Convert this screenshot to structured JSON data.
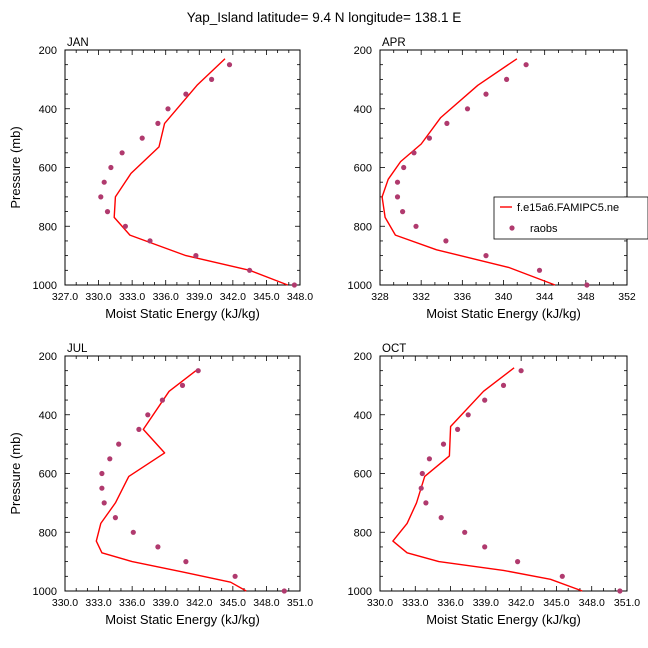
{
  "title": "Yap_Island  latitude= 9.4 N longitude= 138.1 E",
  "colors": {
    "model_line": "#ff0000",
    "raobs_marker": "#b03a6e",
    "axes": "#000000"
  },
  "legend": {
    "placement": "right of APR panel",
    "model_label": "f.e15a6.FAMIPC5.ne",
    "obs_label": "raobs"
  },
  "chart_data": [
    {
      "type": "line",
      "panel_label": "JAN",
      "xlabel": "Moist Static Energy (kJ/kg)",
      "ylabel": "Pressure (mb)",
      "xlim": [
        327,
        348
      ],
      "ylim": [
        1000,
        200
      ],
      "y_inverted": true,
      "xticks": [
        "327.0",
        "330.0",
        "333.0",
        "336.0",
        "339.0",
        "342.0",
        "345.0",
        "348.0"
      ],
      "xtick_values": [
        327,
        330,
        333,
        336,
        339,
        342,
        345,
        348
      ],
      "yticks": [
        "200",
        "400",
        "600",
        "800",
        "1000"
      ],
      "ytick_values": [
        200,
        400,
        600,
        800,
        1000
      ],
      "series": [
        {
          "name": "f.e15a6.FAMIPC5.ne",
          "kind": "line",
          "points": [
            [
              341.3,
              230
            ],
            [
              338.8,
              320
            ],
            [
              335.9,
              450
            ],
            [
              335.4,
              530
            ],
            [
              332.9,
              620
            ],
            [
              331.5,
              700
            ],
            [
              331.4,
              770
            ],
            [
              332.8,
              830
            ],
            [
              337.8,
              900
            ],
            [
              343.5,
              950
            ],
            [
              346.9,
              1000
            ]
          ]
        },
        {
          "name": "raobs",
          "kind": "scatter",
          "points": [
            [
              341.7,
              250
            ],
            [
              340.1,
              300
            ],
            [
              337.8,
              350
            ],
            [
              336.2,
              400
            ],
            [
              335.3,
              450
            ],
            [
              333.9,
              500
            ],
            [
              332.1,
              550
            ],
            [
              331.1,
              600
            ],
            [
              330.5,
              650
            ],
            [
              330.2,
              700
            ],
            [
              330.8,
              750
            ],
            [
              332.4,
              800
            ],
            [
              334.6,
              850
            ],
            [
              338.7,
              900
            ],
            [
              343.5,
              950
            ],
            [
              347.5,
              1000
            ]
          ]
        }
      ]
    },
    {
      "type": "line",
      "panel_label": "APR",
      "xlabel": "Moist Static Energy (kJ/kg)",
      "ylabel": "",
      "xlim": [
        328,
        352
      ],
      "ylim": [
        1000,
        200
      ],
      "y_inverted": true,
      "xticks": [
        "328",
        "332",
        "336",
        "340",
        "344",
        "348",
        "352"
      ],
      "xtick_values": [
        328,
        332,
        336,
        340,
        344,
        348,
        352
      ],
      "yticks": [
        "200",
        "400",
        "600",
        "800",
        "1000"
      ],
      "ytick_values": [
        200,
        400,
        600,
        800,
        1000
      ],
      "series": [
        {
          "name": "f.e15a6.FAMIPC5.ne",
          "kind": "line",
          "points": [
            [
              341.3,
              230
            ],
            [
              337.5,
              320
            ],
            [
              333.9,
              430
            ],
            [
              332.0,
              520
            ],
            [
              330.0,
              580
            ],
            [
              328.8,
              640
            ],
            [
              328.2,
              700
            ],
            [
              328.5,
              770
            ],
            [
              329.5,
              830
            ],
            [
              333.5,
              880
            ],
            [
              340.5,
              940
            ],
            [
              345.0,
              1000
            ]
          ]
        },
        {
          "name": "raobs",
          "kind": "scatter",
          "points": [
            [
              342.2,
              250
            ],
            [
              340.3,
              300
            ],
            [
              338.3,
              350
            ],
            [
              336.5,
              400
            ],
            [
              334.5,
              450
            ],
            [
              332.8,
              500
            ],
            [
              331.3,
              550
            ],
            [
              330.3,
              600
            ],
            [
              329.7,
              650
            ],
            [
              329.7,
              700
            ],
            [
              330.2,
              750
            ],
            [
              331.5,
              800
            ],
            [
              334.4,
              850
            ],
            [
              338.3,
              900
            ],
            [
              343.5,
              950
            ],
            [
              348.1,
              1000
            ]
          ]
        }
      ]
    },
    {
      "type": "line",
      "panel_label": "JUL",
      "xlabel": "Moist Static Energy (kJ/kg)",
      "ylabel": "Pressure (mb)",
      "xlim": [
        330,
        351
      ],
      "ylim": [
        1000,
        200
      ],
      "y_inverted": true,
      "xticks": [
        "330.0",
        "333.0",
        "336.0",
        "339.0",
        "342.0",
        "345.0",
        "348.0",
        "351.0"
      ],
      "xtick_values": [
        330,
        333,
        336,
        339,
        342,
        345,
        348,
        351
      ],
      "yticks": [
        "200",
        "400",
        "600",
        "800",
        "1000"
      ],
      "ytick_values": [
        200,
        400,
        600,
        800,
        1000
      ],
      "series": [
        {
          "name": "f.e15a6.FAMIPC5.ne",
          "kind": "line",
          "points": [
            [
              341.7,
              250
            ],
            [
              339.3,
              320
            ],
            [
              337.0,
              450
            ],
            [
              338.9,
              530
            ],
            [
              335.7,
              610
            ],
            [
              334.5,
              700
            ],
            [
              333.2,
              770
            ],
            [
              332.8,
              830
            ],
            [
              333.3,
              870
            ],
            [
              336.0,
              900
            ],
            [
              340.5,
              935
            ],
            [
              344.8,
              970
            ],
            [
              346.2,
              1000
            ]
          ]
        },
        {
          "name": "raobs",
          "kind": "scatter",
          "points": [
            [
              341.9,
              250
            ],
            [
              340.5,
              300
            ],
            [
              338.7,
              350
            ],
            [
              337.4,
              400
            ],
            [
              336.6,
              450
            ],
            [
              334.8,
              500
            ],
            [
              334.0,
              550
            ],
            [
              333.3,
              600
            ],
            [
              333.3,
              650
            ],
            [
              333.5,
              700
            ],
            [
              334.5,
              750
            ],
            [
              336.1,
              800
            ],
            [
              338.3,
              850
            ],
            [
              340.8,
              900
            ],
            [
              345.2,
              950
            ],
            [
              349.6,
              1000
            ]
          ]
        }
      ]
    },
    {
      "type": "line",
      "panel_label": "OCT",
      "xlabel": "Moist Static Energy (kJ/kg)",
      "ylabel": "",
      "xlim": [
        330,
        351
      ],
      "ylim": [
        1000,
        200
      ],
      "y_inverted": true,
      "xticks": [
        "330.0",
        "333.0",
        "336.0",
        "339.0",
        "342.0",
        "345.0",
        "348.0",
        "351.0"
      ],
      "xtick_values": [
        330,
        333,
        336,
        339,
        342,
        345,
        348,
        351
      ],
      "yticks": [
        "200",
        "400",
        "600",
        "800",
        "1000"
      ],
      "ytick_values": [
        200,
        400,
        600,
        800,
        1000
      ],
      "series": [
        {
          "name": "f.e15a6.FAMIPC5.ne",
          "kind": "line",
          "points": [
            [
              341.4,
              240
            ],
            [
              338.8,
              320
            ],
            [
              336.0,
              440
            ],
            [
              335.9,
              540
            ],
            [
              333.8,
              610
            ],
            [
              333.1,
              700
            ],
            [
              332.3,
              770
            ],
            [
              331.1,
              830
            ],
            [
              332.3,
              870
            ],
            [
              335.0,
              900
            ],
            [
              340.5,
              930
            ],
            [
              344.5,
              960
            ],
            [
              347.2,
              1000
            ]
          ]
        },
        {
          "name": "raobs",
          "kind": "scatter",
          "points": [
            [
              342.0,
              250
            ],
            [
              340.5,
              300
            ],
            [
              338.9,
              350
            ],
            [
              337.5,
              400
            ],
            [
              336.6,
              450
            ],
            [
              335.4,
              500
            ],
            [
              334.2,
              550
            ],
            [
              333.6,
              600
            ],
            [
              333.5,
              650
            ],
            [
              333.9,
              700
            ],
            [
              335.2,
              750
            ],
            [
              337.2,
              800
            ],
            [
              338.9,
              850
            ],
            [
              341.7,
              900
            ],
            [
              345.5,
              950
            ],
            [
              350.4,
              1000
            ]
          ]
        }
      ]
    }
  ]
}
